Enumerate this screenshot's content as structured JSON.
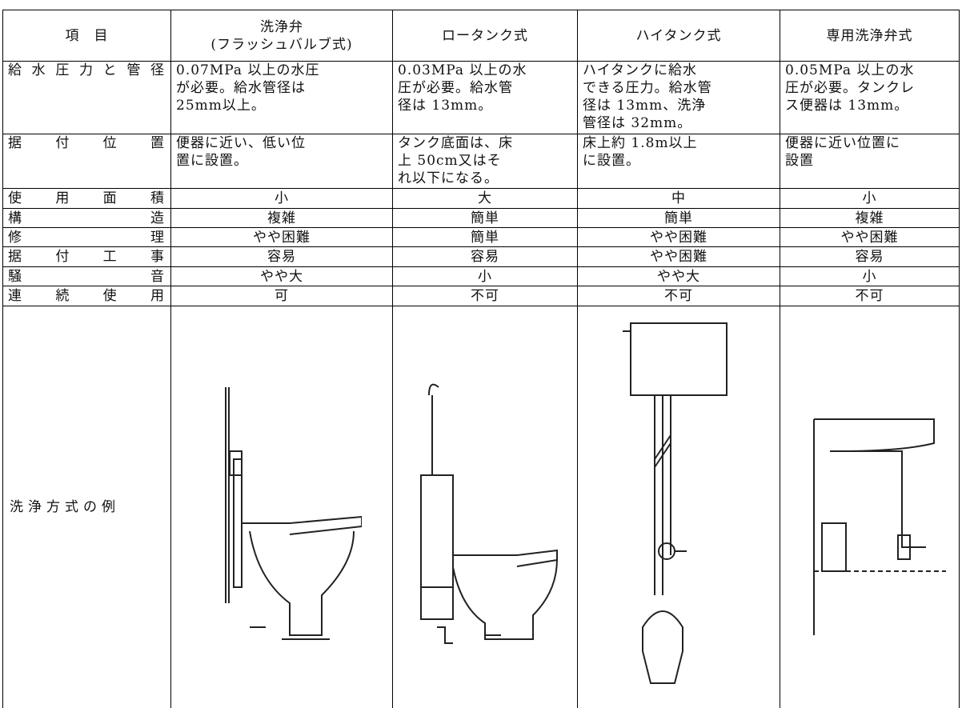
{
  "table": {
    "header": [
      [
        "項　目"
      ],
      [
        "洗浄弁",
        "(フラッシュバルブ式)"
      ],
      [
        "ロータンク式"
      ],
      [
        "ハイタンク式"
      ],
      [
        "専用洗浄弁式"
      ]
    ],
    "rows": [
      {
        "label": "給水圧力と管径",
        "cells": [
          [
            "0.07MPa 以上の水圧",
            "が必要。給水管径は",
            "25mm以上。"
          ],
          [
            "0.03MPa 以上の水",
            "圧が必要。給水管",
            "径は 13mm。"
          ],
          [
            "ハイタンクに給水",
            "できる圧力。給水管",
            "径は 13mm、洗浄",
            "管径は 32mm。"
          ],
          [
            "0.05MPa 以上の水",
            "圧が必要。タンクレ",
            "ス便器は 13mm。"
          ]
        ]
      },
      {
        "label": "据付位置",
        "cells": [
          [
            "便器に近い、低い位",
            "置に設置。"
          ],
          [
            "タンク底面は、床",
            "上 50cm又はそ",
            "れ以下になる。"
          ],
          [
            "床上約 1.8m以上",
            "に設置。"
          ],
          [
            "便器に近い位置に",
            "設置"
          ]
        ]
      },
      {
        "label": "使用面積",
        "cells": [
          [
            "小"
          ],
          [
            "大"
          ],
          [
            "中"
          ],
          [
            "小"
          ]
        ]
      },
      {
        "label": "構造",
        "cells": [
          [
            "複雑"
          ],
          [
            "簡単"
          ],
          [
            "簡単"
          ],
          [
            "複雑"
          ]
        ]
      },
      {
        "label": "修理",
        "cells": [
          [
            "やや困難"
          ],
          [
            "簡単"
          ],
          [
            "やや困難"
          ],
          [
            "やや困難"
          ]
        ]
      },
      {
        "label": "据付工事",
        "cells": [
          [
            "容易"
          ],
          [
            "容易"
          ],
          [
            "やや困難"
          ],
          [
            "容易"
          ]
        ]
      },
      {
        "label": "騒音",
        "cells": [
          [
            "やや大"
          ],
          [
            "小"
          ],
          [
            "やや大"
          ],
          [
            "小"
          ]
        ]
      },
      {
        "label": "連続使用",
        "cells": [
          [
            "可"
          ],
          [
            "不可"
          ],
          [
            "不可"
          ],
          [
            "不可"
          ]
        ]
      }
    ],
    "example_label": "洗浄方式の例"
  }
}
